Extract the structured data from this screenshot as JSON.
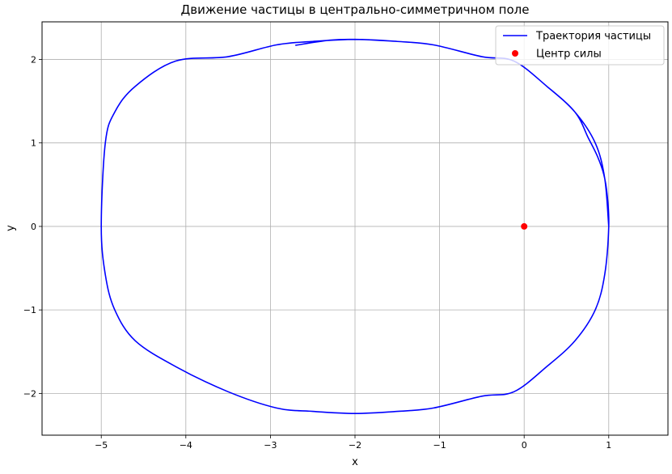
{
  "chart_data": {
    "type": "line",
    "title": "Движение частицы в центрально-симметричном поле",
    "xlabel": "x",
    "ylabel": "y",
    "xlim": [
      -5.7,
      1.7
    ],
    "ylim": [
      -2.5,
      2.45
    ],
    "xticks": [
      -5,
      -4,
      -3,
      -2,
      -1,
      0,
      1
    ],
    "yticks": [
      -2,
      -1,
      0,
      1,
      2
    ],
    "xtick_labels": [
      "−5",
      "−4",
      "−3",
      "−2",
      "−1",
      "0",
      "1"
    ],
    "ytick_labels": [
      "−2",
      "−1",
      "0",
      "1",
      "2"
    ],
    "grid": true,
    "legend_position": "upper right",
    "series": [
      {
        "name": "Траектория частицы",
        "kind": "line",
        "color": "#0000ff",
        "x": [
          1.0,
          0.952,
          0.84,
          0.6,
          0.268,
          -0.121,
          -0.5,
          -1.071,
          -1.5,
          -2.0,
          -2.5,
          -2.929,
          -3.5,
          -4.121,
          -4.598,
          -4.84,
          -4.952,
          -5.0,
          -4.952,
          -4.84,
          -4.598,
          -4.121,
          -3.5,
          -2.929,
          -2.5,
          -2.0,
          -1.5,
          -1.071,
          -0.5,
          -0.121,
          0.268,
          0.6,
          0.84,
          0.952,
          1.0,
          0.982,
          0.942,
          0.866,
          0.758,
          0.6,
          0.268,
          -0.121,
          -0.5,
          -1.071,
          -1.5,
          -2.0,
          -2.3,
          -2.7
        ],
        "y": [
          0.0,
          0.578,
          1.0,
          1.37,
          1.678,
          1.98,
          2.033,
          2.174,
          2.215,
          2.24,
          2.215,
          2.174,
          2.033,
          1.98,
          1.678,
          1.37,
          1.0,
          0.0,
          -0.578,
          -1.0,
          -1.37,
          -1.678,
          -1.98,
          -2.174,
          -2.215,
          -2.24,
          -2.215,
          -2.174,
          -2.033,
          -1.98,
          -1.678,
          -1.37,
          -1.0,
          -0.578,
          0.0,
          0.37,
          0.62,
          0.84,
          1.06,
          1.37,
          1.678,
          1.98,
          2.033,
          2.174,
          2.215,
          2.24,
          2.23,
          2.17
        ]
      },
      {
        "name": "Центр силы",
        "kind": "scatter",
        "color": "#ff0000",
        "x": [
          0
        ],
        "y": [
          0
        ]
      }
    ]
  }
}
